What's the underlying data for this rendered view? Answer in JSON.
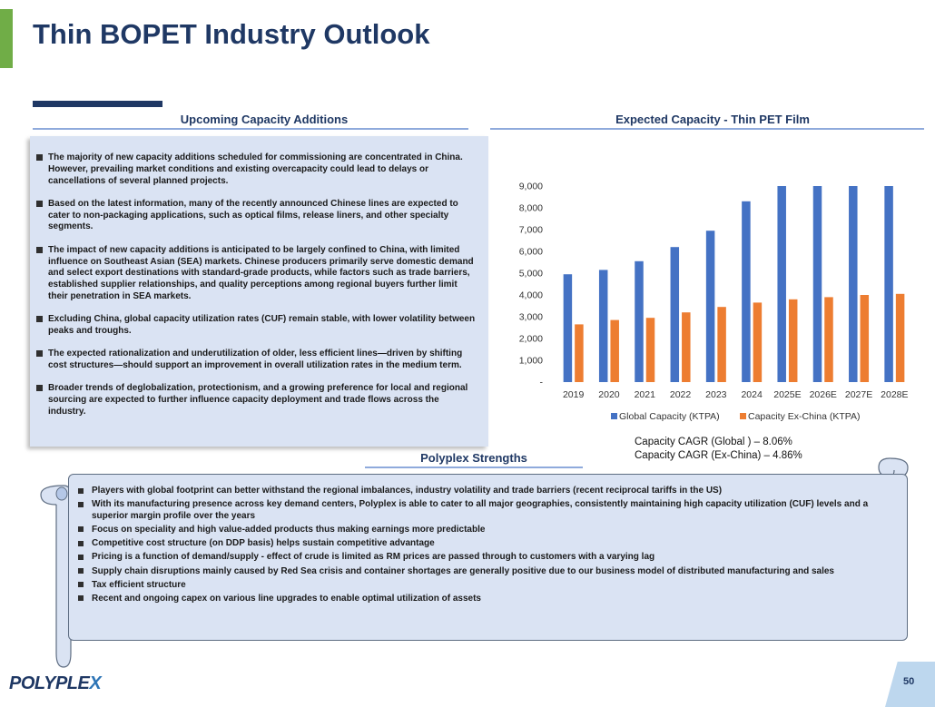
{
  "title": "Thin BOPET Industry Outlook",
  "left_section": {
    "heading": "Upcoming Capacity Additions",
    "bullets": [
      "The majority of new capacity additions scheduled for commissioning are concentrated in China. However, prevailing market conditions and existing overcapacity could lead to delays or cancellations of several planned projects.",
      "Based on the latest information, many of the recently announced Chinese lines are expected to cater to non-packaging applications, such as optical films, release liners, and other specialty segments.",
      "The impact of new capacity additions is anticipated to be largely confined to China, with limited influence on Southeast Asian (SEA) markets. Chinese producers primarily serve domestic demand and select export destinations with standard-grade products, while factors such as trade barriers, established supplier relationships, and quality perceptions among regional buyers further limit their penetration in SEA markets.",
      "Excluding China, global capacity utilization rates (CUF) remain stable, with lower volatility between peaks and troughs.",
      "The expected rationalization and underutilization of older, less efficient lines—driven by shifting cost structures—should support an improvement in overall utilization rates in the medium term.",
      "Broader trends of deglobalization, protectionism, and a growing preference for local and regional sourcing are expected to further influence capacity deployment and trade flows across the industry."
    ]
  },
  "chart_data": {
    "type": "bar",
    "title": "Expected Capacity - Thin PET Film",
    "categories": [
      "2019",
      "2020",
      "2021",
      "2022",
      "2023",
      "2024",
      "2025E",
      "2026E",
      "2027E",
      "2028E"
    ],
    "series": [
      {
        "name": "Global Capacity (KTPA)",
        "color": "#4472c4",
        "values": [
          4950,
          5150,
          5550,
          6200,
          6950,
          8300,
          9000,
          9000,
          9000,
          9000
        ]
      },
      {
        "name": "Capacity Ex-China (KTPA)",
        "color": "#ed7d31",
        "values": [
          2650,
          2850,
          2950,
          3200,
          3450,
          3650,
          3800,
          3900,
          4000,
          4050
        ]
      }
    ],
    "ylim": [
      0,
      9000
    ],
    "yticks": [
      0,
      1000,
      2000,
      3000,
      4000,
      5000,
      6000,
      7000,
      8000,
      9000
    ],
    "ytick_labels": [
      "-",
      "1,000",
      "2,000",
      "3,000",
      "4,000",
      "5,000",
      "6,000",
      "7,000",
      "8,000",
      "9,000"
    ],
    "legend": "bottom",
    "xlabel": "",
    "ylabel": ""
  },
  "cagr": {
    "global": "Capacity CAGR (Global ) – 8.06%",
    "ex_china": "Capacity CAGR (Ex-China) – 4.86%"
  },
  "strengths": {
    "heading": "Polyplex Strengths",
    "bullets": [
      "Players with global footprint can better withstand the regional imbalances, industry volatility and trade barriers (recent reciprocal tariffs in the US)",
      "With its manufacturing presence across key demand centers, Polyplex is able to cater to all major geographies, consistently maintaining high capacity utilization (CUF) levels and a superior margin profile over the years",
      "Focus on speciality and high value-added products thus making earnings more predictable",
      "Competitive cost structure (on DDP basis) helps sustain competitive advantage",
      "Pricing is a function of demand/supply - effect of crude is limited as RM prices are passed through to customers with a varying lag",
      "Supply chain disruptions mainly caused by Red Sea crisis and container shortages are generally positive due to our business model of distributed manufacturing and sales",
      "Tax efficient structure",
      "Recent and ongoing capex on various line upgrades to enable optimal utilization of assets"
    ]
  },
  "logo": {
    "text_main": "POLYPLE",
    "text_x": "X"
  },
  "page_number": "50"
}
